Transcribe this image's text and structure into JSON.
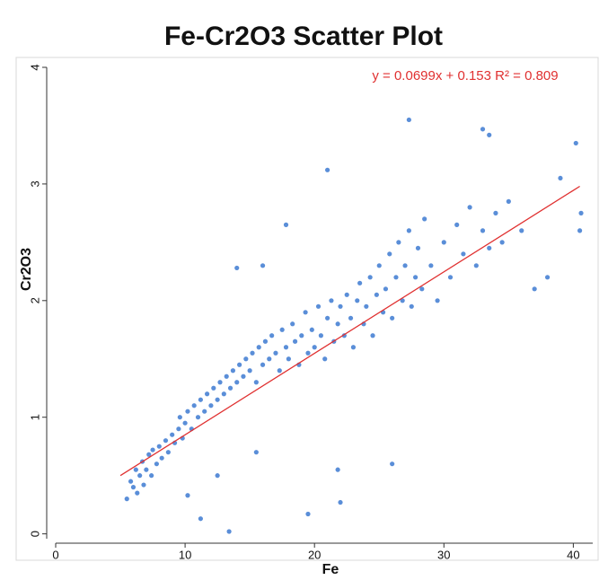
{
  "chart_data": {
    "type": "scatter",
    "title": "Fe-Cr2O3 Scatter Plot",
    "annotation": "y = 0.0699x + 0.153   R² = 0.809",
    "x_label": "Fe",
    "y_label": "Cr2O3",
    "xlim": [
      0,
      41.5
    ],
    "ylim": [
      -0.08,
      4
    ],
    "xticks": [
      0,
      10,
      20,
      30,
      40
    ],
    "yticks": [
      0,
      1,
      2,
      3,
      4
    ],
    "trendline": {
      "color": "#e03030",
      "x": [
        5,
        40.5
      ],
      "y": [
        0.5,
        2.98
      ]
    },
    "series": [
      {
        "name": "Cr2O3",
        "color": "#5a8ed8",
        "x": [
          5.5,
          5.8,
          6,
          6.2,
          6.3,
          6.5,
          6.7,
          6.8,
          7,
          7.2,
          7.4,
          7.5,
          7.8,
          8,
          8.2,
          8.5,
          8.7,
          9,
          9.2,
          9.5,
          9.6,
          9.8,
          10,
          10.2,
          10.5,
          10.7,
          11,
          11.2,
          11.5,
          11.7,
          12,
          12.2,
          12.5,
          12.7,
          13,
          13.2,
          13.5,
          13.7,
          14,
          14.2,
          14.5,
          14.7,
          15,
          15.2,
          15.5,
          15.7,
          16,
          16.2,
          16.5,
          16.7,
          17,
          17.3,
          17.5,
          17.8,
          18,
          18.3,
          18.5,
          18.8,
          19,
          19.3,
          19.5,
          19.8,
          20,
          20.3,
          20.5,
          20.8,
          21,
          21.3,
          21.5,
          21.8,
          22,
          22.3,
          22.5,
          22.8,
          23,
          23.3,
          23.5,
          23.8,
          24,
          24.3,
          24.5,
          24.8,
          25,
          25.3,
          25.5,
          25.8,
          26,
          26.3,
          26.5,
          26.8,
          27,
          27.3,
          27.5,
          27.8,
          28,
          28.3,
          28.5,
          29,
          29.5,
          30,
          30.5,
          31,
          31.5,
          32,
          32.5,
          33,
          33.5,
          34,
          34.5,
          35,
          36,
          37,
          38,
          39,
          40.2,
          40.5,
          40.6,
          27.3,
          33,
          33.5,
          21,
          17.8,
          14,
          16,
          11.2,
          13.4,
          19.5,
          22,
          10.2,
          12.5,
          21.8,
          15.5,
          26
        ],
        "values": [
          0.3,
          0.45,
          0.4,
          0.55,
          0.35,
          0.5,
          0.62,
          0.42,
          0.55,
          0.68,
          0.5,
          0.72,
          0.6,
          0.75,
          0.65,
          0.8,
          0.7,
          0.85,
          0.78,
          0.9,
          1.0,
          0.82,
          0.95,
          1.05,
          0.9,
          1.1,
          1.0,
          1.15,
          1.05,
          1.2,
          1.1,
          1.25,
          1.15,
          1.3,
          1.2,
          1.35,
          1.25,
          1.4,
          1.3,
          1.45,
          1.35,
          1.5,
          1.4,
          1.55,
          1.3,
          1.6,
          1.45,
          1.65,
          1.5,
          1.7,
          1.55,
          1.4,
          1.75,
          1.6,
          1.5,
          1.8,
          1.65,
          1.45,
          1.7,
          1.9,
          1.55,
          1.75,
          1.6,
          1.95,
          1.7,
          1.5,
          1.85,
          2.0,
          1.65,
          1.8,
          1.95,
          1.7,
          2.05,
          1.85,
          1.6,
          2.0,
          2.15,
          1.8,
          1.95,
          2.2,
          1.7,
          2.05,
          2.3,
          1.9,
          2.1,
          2.4,
          1.85,
          2.2,
          2.5,
          2.0,
          2.3,
          2.6,
          1.95,
          2.2,
          2.45,
          2.1,
          2.7,
          2.3,
          2.0,
          2.5,
          2.2,
          2.65,
          2.4,
          2.8,
          2.3,
          2.6,
          2.45,
          2.75,
          2.5,
          2.85,
          2.6,
          2.1,
          2.2,
          3.05,
          3.35,
          2.6,
          2.75,
          3.55,
          3.47,
          3.42,
          3.12,
          2.65,
          2.28,
          2.3,
          0.13,
          0.02,
          0.17,
          0.27,
          0.33,
          0.5,
          0.55,
          0.7,
          0.6
        ]
      }
    ]
  }
}
